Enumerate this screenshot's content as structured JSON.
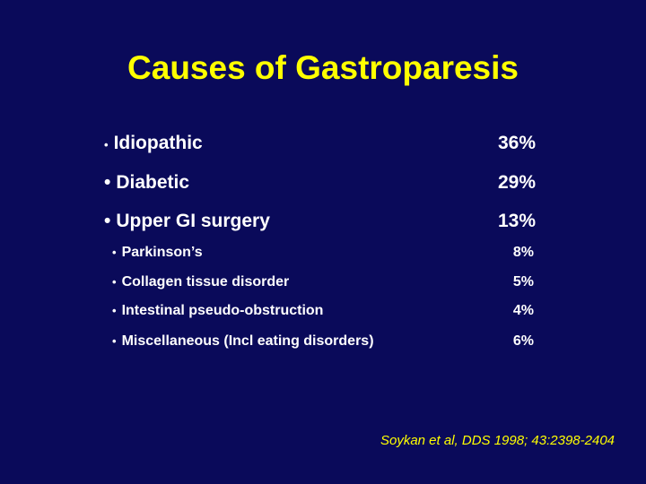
{
  "slide": {
    "title": "Causes of Gastroparesis",
    "bullet": "•",
    "items": [
      {
        "label": "Idiopathic",
        "percent": "36%"
      },
      {
        "label": "Diabetic",
        "percent": "29%"
      },
      {
        "label": "Upper GI surgery",
        "percent": "13%"
      },
      {
        "label": "Parkinson’s",
        "percent": "8%"
      },
      {
        "label": "Collagen tissue disorder",
        "percent": "5%"
      },
      {
        "label": "Intestinal pseudo-obstruction",
        "percent": "4%"
      },
      {
        "label": "Miscellaneous (Incl eating disorders)",
        "percent": "6%"
      }
    ],
    "citation": "Soykan et al, DDS 1998; 43:2398-2404"
  },
  "colors": {
    "background": "#0a0a5a",
    "title": "#ffff00",
    "text": "#ffffff",
    "citation": "#ffff00"
  }
}
